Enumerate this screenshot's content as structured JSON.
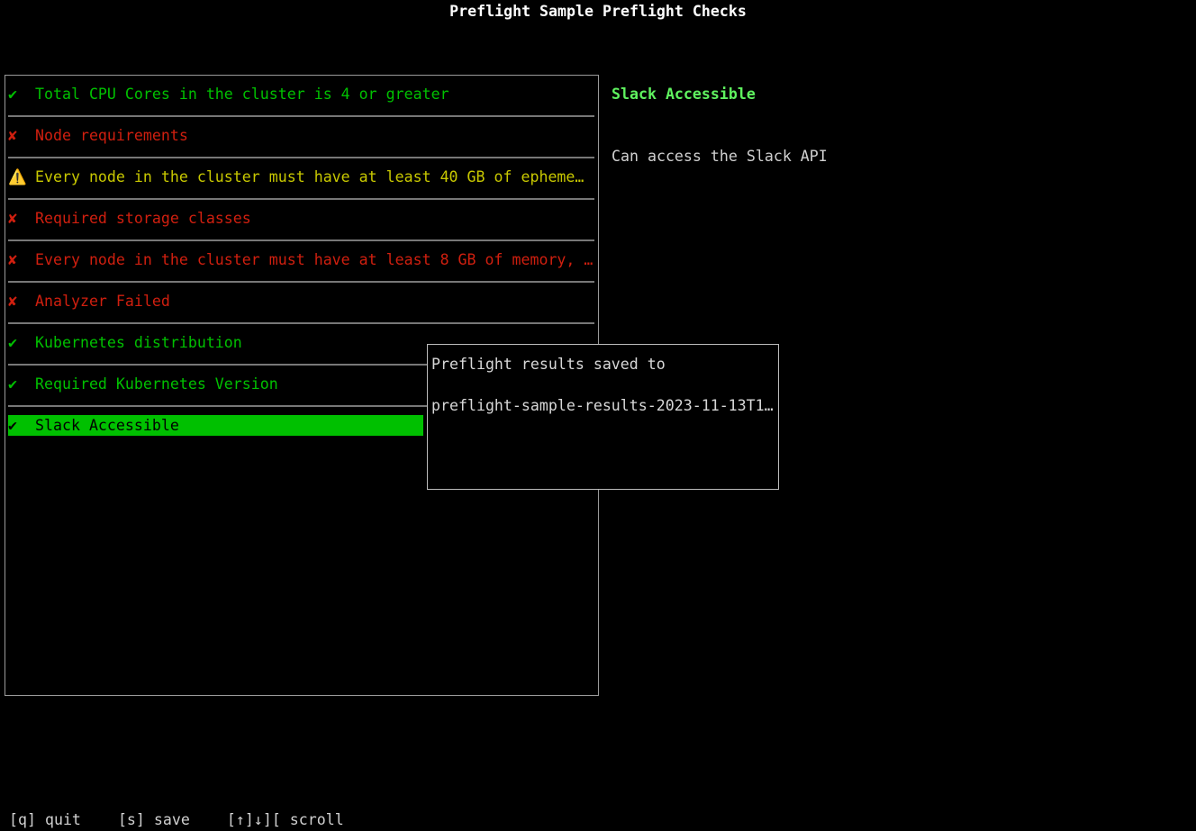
{
  "title": "Preflight Sample Preflight Checks",
  "checks": [
    {
      "status": "pass",
      "icon": "✔",
      "label": "Total CPU Cores in the cluster is 4 or greater"
    },
    {
      "status": "fail",
      "icon": "✘",
      "label": "Node requirements"
    },
    {
      "status": "warn",
      "icon": "⚠️",
      "label": "Every node in the cluster must have at least 40 GB of epheme…"
    },
    {
      "status": "fail",
      "icon": "✘",
      "label": "Required storage classes"
    },
    {
      "status": "fail",
      "icon": "✘",
      "label": "Every node in the cluster must have at least 8 GB of memory, …"
    },
    {
      "status": "fail",
      "icon": "✘",
      "label": "Analyzer Failed"
    },
    {
      "status": "pass",
      "icon": "✔",
      "label": "Kubernetes distribution"
    },
    {
      "status": "pass",
      "icon": "✔",
      "label": "Required Kubernetes Version"
    },
    {
      "status": "pass",
      "icon": "✔",
      "label": "Slack Accessible",
      "selected": true
    }
  ],
  "detail": {
    "title": "Slack Accessible",
    "message": "Can access the Slack API"
  },
  "popup": {
    "line1": "Preflight results saved to",
    "line2": "preflight-sample-results-2023-11-13T1…"
  },
  "footer": {
    "quit": "[q] quit",
    "save": "[s] save",
    "scroll": "[↑]↓][ scroll"
  },
  "colors": {
    "pass": "#00c000",
    "fail": "#d01f0f",
    "warn": "#c8c800",
    "selected_bg": "#00c000"
  }
}
